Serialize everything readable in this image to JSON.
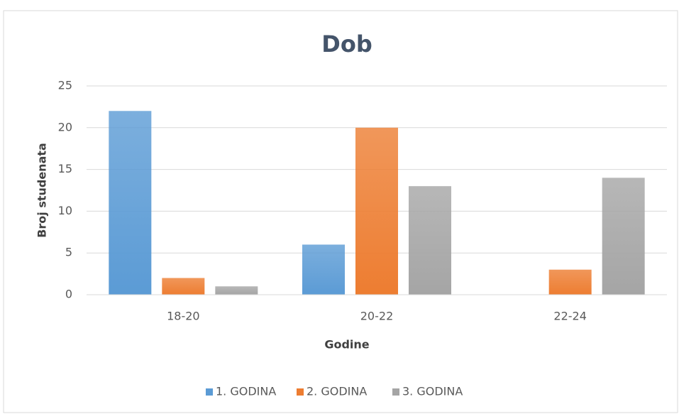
{
  "chart_data": {
    "type": "bar",
    "title": "Dob",
    "x_label": "Godine",
    "y_label": "Broj studenata",
    "categories": [
      "18-20",
      "20-22",
      "22-24"
    ],
    "series": [
      {
        "name": "1. GODINA",
        "color": "#5b9bd5",
        "values": [
          22,
          6,
          0
        ]
      },
      {
        "name": "2. GODINA",
        "color": "#ed7d31",
        "values": [
          2,
          20,
          3
        ]
      },
      {
        "name": "3. GODINA",
        "color": "#a5a5a5",
        "values": [
          1,
          13,
          14
        ]
      }
    ],
    "ylim": [
      0,
      25
    ],
    "yticks": [
      0,
      5,
      10,
      15,
      20,
      25
    ],
    "grid": true,
    "legend": "bottom"
  }
}
